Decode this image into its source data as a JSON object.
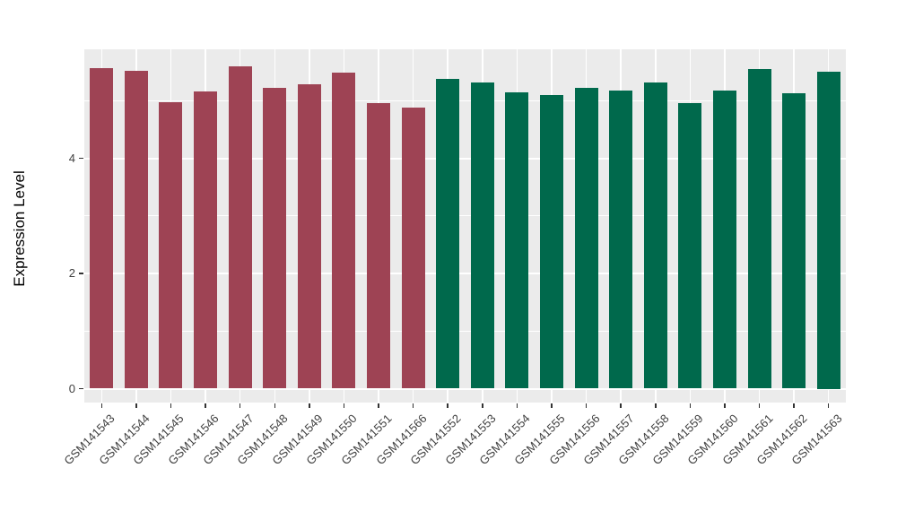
{
  "chart_data": {
    "type": "bar",
    "title": "",
    "xlabel": "",
    "ylabel": "Expression Level",
    "yticks": [
      0,
      2,
      4
    ],
    "minor_gridlines": [
      1,
      3,
      5
    ],
    "ylim": [
      0,
      5.89
    ],
    "legend": "none",
    "grid": "on",
    "colors": {
      "group1": "#9E4354",
      "group2": "#00694C"
    },
    "panel_background": "#EBEBEB",
    "page_background": "#FFFFFF",
    "grid_color": "#FFFFFF",
    "axis_text_color": "#404040",
    "axis_title_color": "#000000",
    "tick_mark_color": "#333333",
    "bars": [
      {
        "label": "GSM141543",
        "value": 5.56,
        "group": "group1"
      },
      {
        "label": "GSM141544",
        "value": 5.52,
        "group": "group1"
      },
      {
        "label": "GSM141545",
        "value": 4.98,
        "group": "group1"
      },
      {
        "label": "GSM141546",
        "value": 5.16,
        "group": "group1"
      },
      {
        "label": "GSM141547",
        "value": 5.59,
        "group": "group1"
      },
      {
        "label": "GSM141548",
        "value": 5.22,
        "group": "group1"
      },
      {
        "label": "GSM141549",
        "value": 5.28,
        "group": "group1"
      },
      {
        "label": "GSM141550",
        "value": 5.49,
        "group": "group1"
      },
      {
        "label": "GSM141551",
        "value": 4.96,
        "group": "group1"
      },
      {
        "label": "GSM141566",
        "value": 4.88,
        "group": "group1"
      },
      {
        "label": "GSM141552",
        "value": 5.38,
        "group": "group2"
      },
      {
        "label": "GSM141553",
        "value": 5.32,
        "group": "group2"
      },
      {
        "label": "GSM141554",
        "value": 5.15,
        "group": "group2"
      },
      {
        "label": "GSM141555",
        "value": 5.1,
        "group": "group2"
      },
      {
        "label": "GSM141556",
        "value": 5.22,
        "group": "group2"
      },
      {
        "label": "GSM141557",
        "value": 5.18,
        "group": "group2"
      },
      {
        "label": "GSM141558",
        "value": 5.32,
        "group": "group2"
      },
      {
        "label": "GSM141559",
        "value": 4.95,
        "group": "group2"
      },
      {
        "label": "GSM141560",
        "value": 5.18,
        "group": "group2"
      },
      {
        "label": "GSM141561",
        "value": 5.55,
        "group": "group2"
      },
      {
        "label": "GSM141562",
        "value": 5.13,
        "group": "group2"
      },
      {
        "label": "GSM141563",
        "value": 5.5,
        "group": "group2"
      }
    ]
  }
}
